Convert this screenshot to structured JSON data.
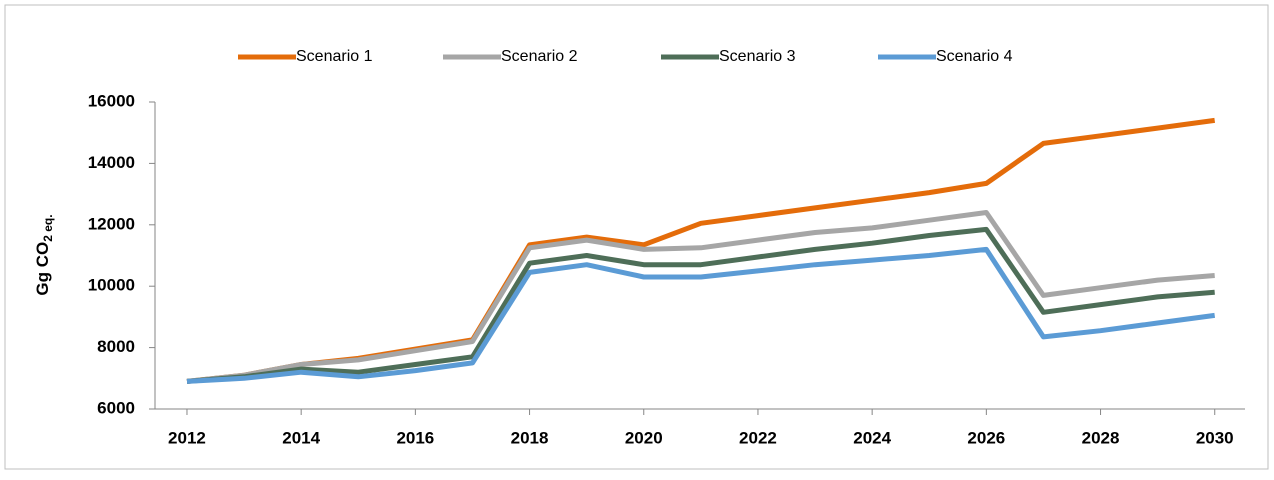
{
  "chart_data": {
    "type": "line",
    "ylabel": "Gg CO",
    "ylabel_sub": "2 eq.",
    "x": [
      2012,
      2013,
      2014,
      2015,
      2016,
      2017,
      2018,
      2019,
      2020,
      2021,
      2022,
      2023,
      2024,
      2025,
      2026,
      2027,
      2028,
      2029,
      2030
    ],
    "series": [
      {
        "name": "Scenario 1",
        "color": "#e46c0a",
        "values": [
          6900,
          7100,
          7450,
          7650,
          7950,
          8250,
          11350,
          11600,
          11350,
          12050,
          12300,
          12550,
          12800,
          13050,
          13350,
          14650,
          14900,
          15150,
          15400
        ]
      },
      {
        "name": "Scenario 2",
        "color": "#a6a6a6",
        "values": [
          6900,
          7100,
          7450,
          7600,
          7900,
          8200,
          11250,
          11500,
          11200,
          11250,
          11500,
          11750,
          11900,
          12150,
          12400,
          9700,
          9950,
          10200,
          10350
        ]
      },
      {
        "name": "Scenario 3",
        "color": "#4e6e58",
        "values": [
          6900,
          7050,
          7300,
          7200,
          7450,
          7700,
          10750,
          11000,
          10700,
          10700,
          10950,
          11200,
          11400,
          11650,
          11850,
          9150,
          9400,
          9650,
          9800
        ]
      },
      {
        "name": "Scenario 4",
        "color": "#5b9bd5",
        "values": [
          6900,
          7000,
          7200,
          7050,
          7250,
          7500,
          10450,
          10700,
          10300,
          10300,
          10500,
          10700,
          10850,
          11000,
          11200,
          8350,
          8550,
          8800,
          9050
        ]
      }
    ],
    "xlim": [
      2011.44,
      2030.53
    ],
    "xticks": [
      2012,
      2014,
      2016,
      2018,
      2020,
      2022,
      2024,
      2026,
      2028,
      2030
    ],
    "ylim": [
      6000,
      16000
    ],
    "yticks": [
      6000,
      8000,
      10000,
      12000,
      14000,
      16000
    ],
    "grid": false,
    "legend": "top"
  }
}
